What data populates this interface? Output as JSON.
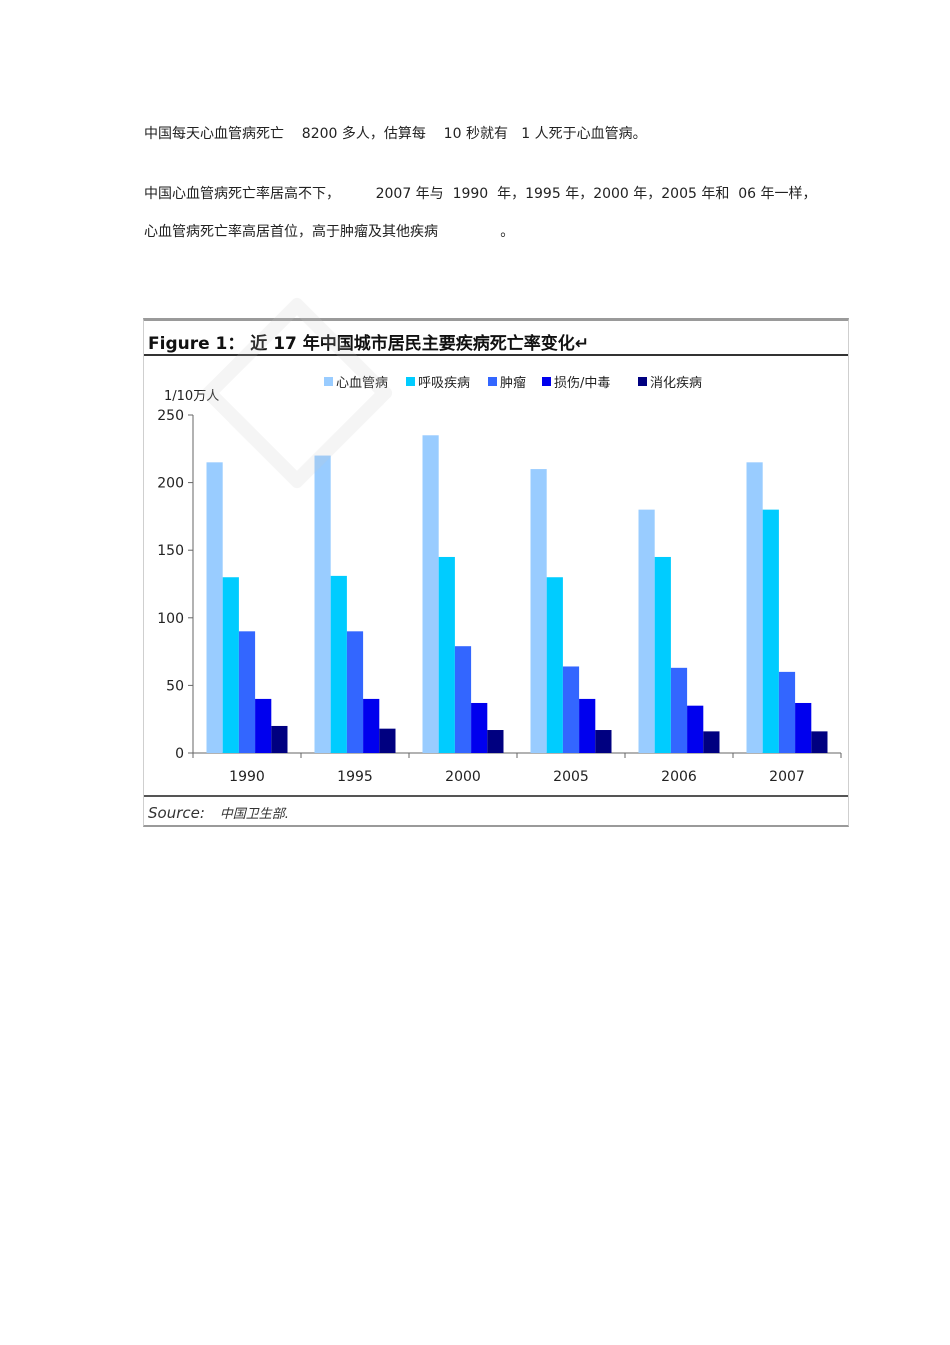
{
  "paragraphs": {
    "line1": "中国每天心血管病死亡    8200 多人，估算每    10 秒就有   1 人死于心血管病。",
    "line2": "中国心血管病死亡率居高不下，        2007 年与  1990  年，1995 年，2000 年，2005 年和  06 年一样，",
    "line3": "心血管病死亡率高居首位，高于肿瘤及其他疾病              。"
  },
  "figure": {
    "title": "Figure 1：  近 17 年中国城市居民主要疾病死亡率变化↵",
    "source_label": "Source:",
    "source_value": "中国卫生部."
  },
  "chart_data": {
    "type": "bar",
    "title": "",
    "xlabel": "",
    "ylabel": "1/10万人",
    "ylim": [
      0,
      250
    ],
    "yticks": [
      0,
      50,
      100,
      150,
      200,
      250
    ],
    "categories": [
      "1990",
      "1995",
      "2000",
      "2005",
      "2006",
      "2007"
    ],
    "legend_position": "top",
    "grid": false,
    "series": [
      {
        "name": "心血管病",
        "color": "#99ccff",
        "values": [
          215,
          220,
          235,
          210,
          180,
          215
        ]
      },
      {
        "name": "呼吸疾病",
        "color": "#00ccff",
        "values": [
          130,
          131,
          145,
          130,
          145,
          180
        ]
      },
      {
        "name": "肿瘤",
        "color": "#3366ff",
        "values": [
          90,
          90,
          79,
          64,
          63,
          60
        ]
      },
      {
        "name": "损伤/中毒",
        "color": "#0000ee",
        "values": [
          40,
          40,
          37,
          40,
          35,
          37
        ]
      },
      {
        "name": "消化疾病",
        "color": "#000080",
        "values": [
          20,
          18,
          17,
          17,
          16,
          16
        ]
      }
    ]
  }
}
